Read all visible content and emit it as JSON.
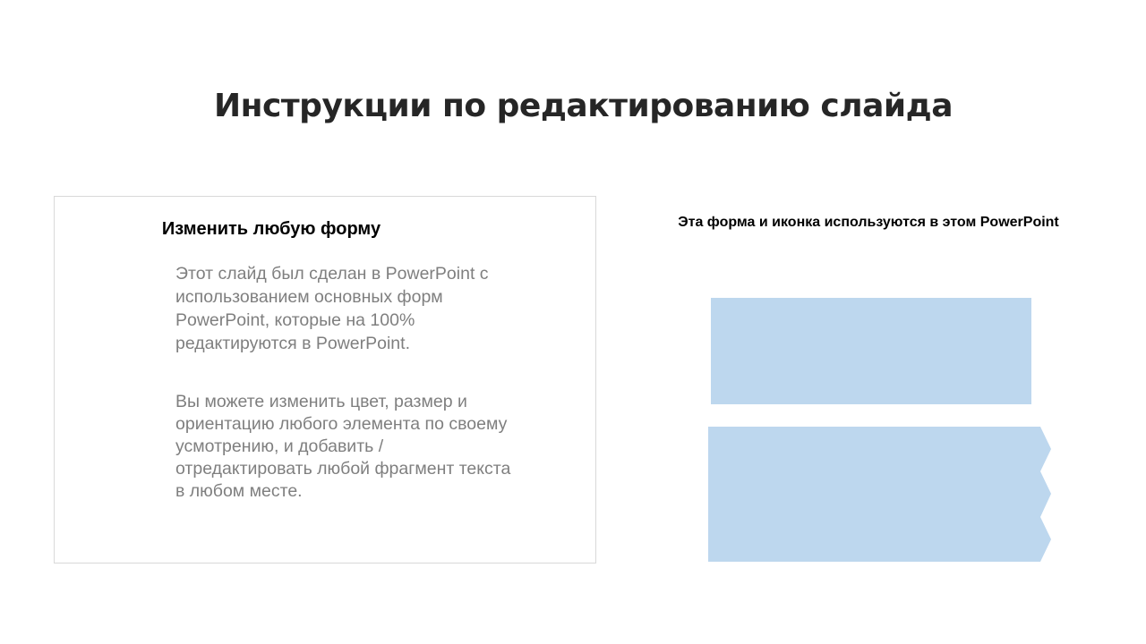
{
  "slide": {
    "title": "Инструкции по редактированию слайда",
    "card": {
      "heading": "Изменить любую форму",
      "paragraphs": [
        "Этот слайд был сделан в PowerPoint с использованием основных форм PowerPoint, которые на 100% редактируются в PowerPoint.",
        "Вы можете изменить цвет, размер и ориентацию любого элемента по своему усмотрению, и добавить / отредактировать любой фрагмент текста в любом месте."
      ]
    },
    "right": {
      "caption": "Эта форма и иконка используются в этом PowerPoint"
    },
    "colors": {
      "shape_fill": "#bdd7ee",
      "title_text": "#262626",
      "body_text": "#7f7f7f"
    }
  }
}
